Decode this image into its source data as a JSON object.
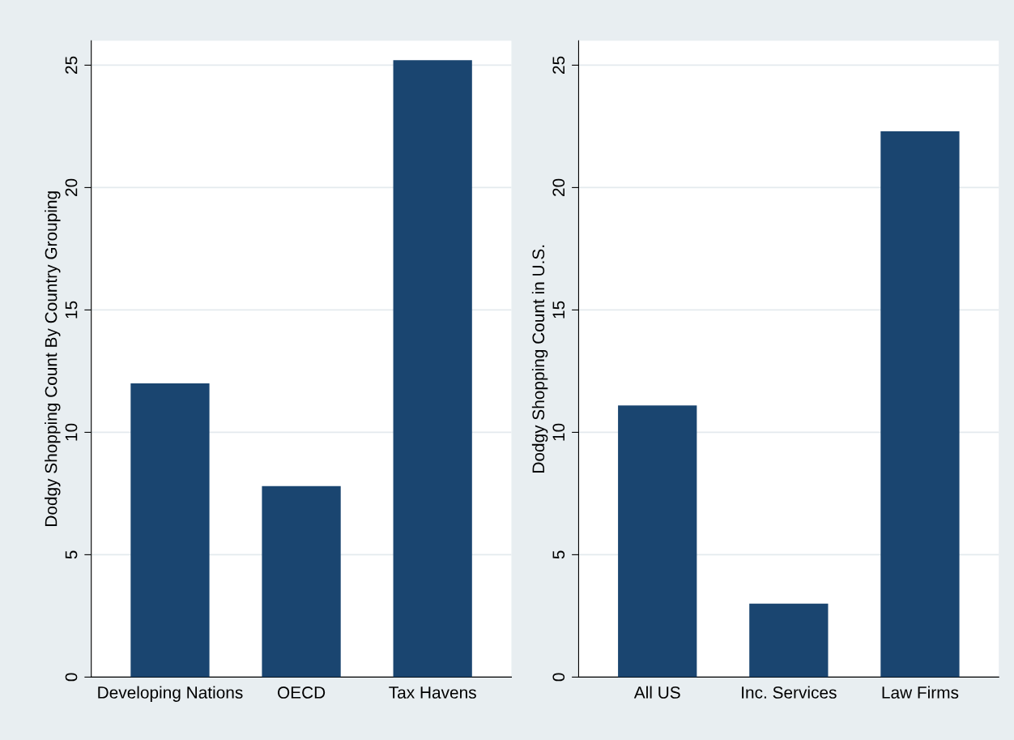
{
  "chart_data": [
    {
      "type": "bar",
      "ylabel": "Dodgy Shopping Count By Country Grouping",
      "categories": [
        "Developing Nations",
        "OECD",
        "Tax Havens"
      ],
      "values": [
        12,
        7.8,
        25.2
      ],
      "color": "#1a4570",
      "ylim": [
        0,
        26
      ],
      "yticks": [
        0,
        5,
        10,
        15,
        20,
        25
      ],
      "grid": "y"
    },
    {
      "type": "bar",
      "ylabel": "Dodgy Shopping Count in U.S.",
      "categories": [
        "All US",
        "Inc. Services",
        "Law Firms"
      ],
      "values": [
        11.1,
        3,
        22.3
      ],
      "color": "#1a4570",
      "ylim": [
        0,
        26
      ],
      "yticks": [
        0,
        5,
        10,
        15,
        20,
        25
      ],
      "grid": "y"
    }
  ]
}
